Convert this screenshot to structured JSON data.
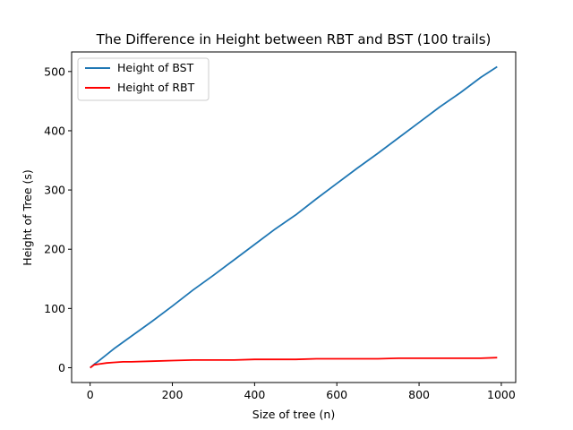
{
  "chart_data": {
    "type": "line",
    "title": "The Difference in Height between RBT and BST (100 trails)",
    "xlabel": "Size of tree (n)",
    "ylabel": "Height of Tree (s)",
    "xlim": [
      -45,
      1035
    ],
    "ylim": [
      -25,
      533
    ],
    "xticks": [
      0,
      200,
      400,
      600,
      800,
      1000
    ],
    "yticks": [
      0,
      100,
      200,
      300,
      400,
      500
    ],
    "legend_position": "upper-left",
    "series": [
      {
        "name": "Height of BST",
        "color": "#1f77b4",
        "x": [
          0,
          10,
          20,
          40,
          60,
          80,
          100,
          150,
          200,
          250,
          300,
          350,
          400,
          450,
          500,
          550,
          600,
          650,
          700,
          750,
          800,
          850,
          900,
          950,
          990
        ],
        "y": [
          0,
          6,
          11,
          22,
          33,
          43,
          53,
          78,
          104,
          131,
          156,
          182,
          208,
          234,
          258,
          285,
          311,
          337,
          362,
          388,
          414,
          440,
          464,
          490,
          508
        ]
      },
      {
        "name": "Height of RBT",
        "color": "#ff0000",
        "x": [
          0,
          10,
          20,
          40,
          60,
          80,
          100,
          150,
          200,
          250,
          300,
          350,
          400,
          450,
          500,
          550,
          600,
          650,
          700,
          750,
          800,
          850,
          900,
          950,
          990
        ],
        "y": [
          0,
          5,
          6,
          8,
          9,
          10,
          10,
          11,
          12,
          13,
          13,
          13,
          14,
          14,
          14,
          15,
          15,
          15,
          15,
          16,
          16,
          16,
          16,
          16,
          17
        ]
      }
    ]
  }
}
